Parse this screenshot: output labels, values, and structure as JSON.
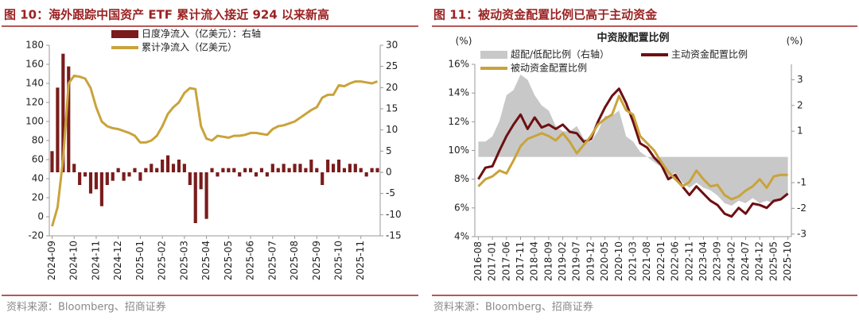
{
  "chart_data": [
    {
      "type": "combo",
      "caption": "图 10：海外跟踪中国资产 ETF 累计流入接近 924 以来新高",
      "source": "资料来源：Bloomberg、招商证券",
      "categories": [
        "2024-09",
        null,
        null,
        null,
        "2024-10",
        null,
        null,
        null,
        "2024-11",
        null,
        null,
        null,
        "2024-12",
        null,
        null,
        null,
        "2025-01",
        null,
        null,
        null,
        "2025-02",
        null,
        null,
        null,
        "2025-03",
        null,
        null,
        null,
        "2025-04",
        null,
        null,
        null,
        "2025-05",
        null,
        null,
        null,
        "2025-06",
        null,
        null,
        null,
        "2025-07",
        null,
        null,
        null,
        "2025-08",
        null,
        null,
        null,
        "2025-09",
        null,
        null,
        null,
        "2025-10",
        null,
        null,
        null,
        "2025-11",
        null,
        null,
        null
      ],
      "ylim": [
        -20,
        180
      ],
      "yticks": [
        -20,
        0,
        20,
        40,
        60,
        80,
        100,
        120,
        140,
        160,
        180
      ],
      "y2lim": [
        -15,
        30
      ],
      "y2ticks": [
        -15,
        -10,
        -5,
        0,
        5,
        10,
        15,
        20,
        25,
        30
      ],
      "series": [
        {
          "name": "日度净流入（亿美元）：右轴",
          "style": "bar",
          "axis": "y2",
          "color": "#7a1c1c",
          "values": [
            5,
            20,
            28,
            25,
            2,
            -3,
            -1,
            -5,
            -4,
            -8,
            -3,
            -2,
            1,
            -2,
            -1,
            1,
            -2,
            1,
            2,
            1,
            3,
            4,
            2,
            3,
            2,
            -3,
            -12,
            -4,
            -11,
            1,
            -1,
            1,
            1,
            1,
            -1,
            1,
            1,
            -1,
            1,
            -1,
            2,
            1,
            2,
            1,
            2,
            2,
            1,
            3,
            1,
            -3,
            3,
            2,
            3,
            1,
            2,
            2,
            1,
            -1,
            1,
            1
          ]
        },
        {
          "name": "累计净流入（亿美元）",
          "style": "line",
          "axis": "y",
          "color": "#c9a33b",
          "values": [
            -10,
            10,
            60,
            140,
            148,
            147,
            145,
            135,
            115,
            100,
            95,
            93,
            92,
            90,
            88,
            85,
            78,
            78,
            80,
            85,
            95,
            108,
            115,
            120,
            130,
            135,
            134,
            95,
            82,
            80,
            85,
            84,
            83,
            85,
            85,
            86,
            88,
            88,
            87,
            86,
            92,
            95,
            96,
            98,
            100,
            104,
            108,
            112,
            115,
            125,
            128,
            128,
            138,
            137,
            140,
            142,
            142,
            141,
            140,
            142
          ]
        }
      ]
    },
    {
      "type": "combo",
      "caption": "图 11：被动资金配置比例已高于主动资金",
      "title": "中资股配置比例",
      "ylabel": "(%)",
      "y2label": "(%)",
      "source": "资料来源：Bloomberg、招商证券",
      "categories": [
        "2016-08",
        null,
        "2017-01",
        null,
        "2017-06",
        null,
        "2017-11",
        null,
        "2018-04",
        null,
        "2018-09",
        null,
        "2019-02",
        null,
        "2019-07",
        null,
        "2019-12",
        null,
        "2020-05",
        null,
        "2020-10",
        null,
        "2021-03",
        null,
        "2021-08",
        null,
        "2022-01",
        null,
        "2022-06",
        null,
        "2022-11",
        null,
        "2023-04",
        null,
        "2023-09",
        null,
        "2024-02",
        null,
        "2024-07",
        null,
        "2024-12",
        null,
        "2025-05",
        null,
        "2025-10"
      ],
      "ylim": [
        4,
        16
      ],
      "yticks": [
        {
          "value": 4,
          "label": "4%"
        },
        {
          "value": 6,
          "label": "6%"
        },
        {
          "value": 8,
          "label": "8%"
        },
        {
          "value": 10,
          "label": "10%"
        },
        {
          "value": 12,
          "label": "12%"
        },
        {
          "value": 14,
          "label": "14%"
        },
        {
          "value": 16,
          "label": "16%"
        }
      ],
      "y2lim": [
        -3.1,
        3.6
      ],
      "y2ticks": [
        -3,
        -2,
        -1,
        1,
        2,
        3
      ],
      "series": [
        {
          "name": "超配/低配比例（右轴）",
          "style": "area",
          "axis": "y2",
          "color": "#c8c8c8",
          "values": [
            0.6,
            0.6,
            0.8,
            1.4,
            2.4,
            2.6,
            3.2,
            3.0,
            2.4,
            2.0,
            1.8,
            1.2,
            1.0,
            1.0,
            1.2,
            0.7,
            0.6,
            1.0,
            1.6,
            1.6,
            1.8,
            0.8,
            0.6,
            0.2,
            0.0,
            -0.2,
            -0.4,
            -0.8,
            -0.6,
            -1.0,
            -1.2,
            -1.0,
            -1.2,
            -1.3,
            -1.5,
            -1.8,
            -1.9,
            -1.7,
            -1.8,
            -1.6,
            -1.8,
            -1.7,
            -1.8,
            -1.7,
            -1.4
          ]
        },
        {
          "name": "主动资金配置比例",
          "style": "line",
          "axis": "y",
          "color": "#6e0f12",
          "values": [
            8.0,
            8.8,
            8.9,
            10.0,
            11.0,
            11.8,
            12.5,
            11.5,
            12.3,
            11.6,
            11.8,
            11.5,
            11.8,
            11.3,
            11.2,
            10.6,
            10.8,
            12.0,
            13.0,
            13.8,
            14.3,
            13.3,
            12.0,
            10.5,
            10.2,
            9.5,
            9.0,
            8.0,
            8.3,
            7.5,
            6.9,
            7.5,
            7.0,
            6.5,
            6.2,
            5.6,
            5.4,
            6.0,
            5.6,
            6.3,
            6.2,
            6.0,
            6.5,
            6.6,
            7.0
          ]
        },
        {
          "name": "被动资金配置比例",
          "style": "line",
          "axis": "y",
          "color": "#c9a33b",
          "values": [
            7.5,
            8.0,
            8.2,
            8.6,
            8.4,
            9.3,
            10.3,
            10.8,
            11.0,
            11.2,
            11.0,
            10.7,
            11.2,
            10.6,
            9.8,
            10.4,
            11.0,
            11.8,
            12.2,
            12.5,
            13.8,
            12.8,
            12.5,
            11.0,
            10.5,
            10.0,
            9.2,
            8.5,
            8.0,
            7.5,
            7.8,
            8.6,
            8.0,
            7.5,
            7.6,
            6.9,
            6.6,
            6.8,
            7.2,
            7.5,
            8.0,
            7.4,
            8.2,
            8.3,
            8.3
          ]
        }
      ]
    }
  ]
}
